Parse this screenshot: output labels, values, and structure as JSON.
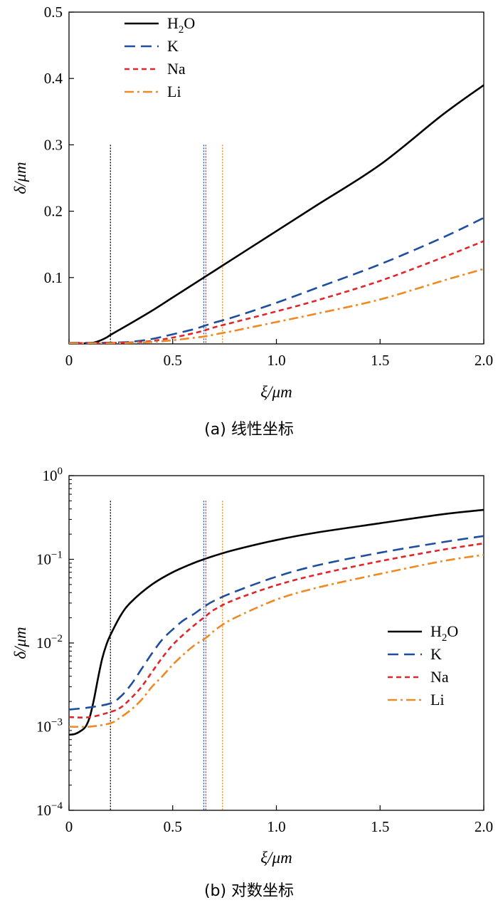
{
  "chart_data": [
    {
      "type": "line",
      "scale": "linear",
      "caption": "(a)  线性坐标",
      "xlabel": "ξ/μm",
      "ylabel": "δ/μm",
      "xlim": [
        0,
        2.0
      ],
      "ylim": [
        0,
        0.5
      ],
      "x_ticks": [
        0,
        0.5,
        1.0,
        1.5,
        2.0
      ],
      "x_tick_labels": [
        "0",
        "0.5",
        "1.0",
        "1.5",
        "2.0"
      ],
      "y_ticks": [
        0.1,
        0.2,
        0.3,
        0.4,
        0.5
      ],
      "y_tick_labels": [
        "0.1",
        "0.2",
        "0.3",
        "0.4",
        "0.5"
      ],
      "legend_position": "top-left",
      "grid": false,
      "vlines": [
        {
          "x": 0.2,
          "color": "#000000",
          "ymax": 0.3
        },
        {
          "x": 0.65,
          "color": "#1f4e9e",
          "ymax": 0.3
        },
        {
          "x": 0.66,
          "color": "#e0262a",
          "ymax": 0.3
        },
        {
          "x": 0.74,
          "color": "#ef8a22",
          "ymax": 0.3
        }
      ],
      "series": [
        {
          "name": "H2O",
          "color": "#000000",
          "dash": "solid",
          "x": [
            0,
            0.05,
            0.1,
            0.12,
            0.15,
            0.18,
            0.2,
            0.25,
            0.3,
            0.4,
            0.5,
            0.6,
            0.65,
            0.7,
            0.8,
            1.0,
            1.2,
            1.5,
            1.8,
            2.0
          ],
          "y": [
            0.0008,
            0.0008,
            0.0012,
            0.002,
            0.005,
            0.0095,
            0.0135,
            0.0225,
            0.0315,
            0.05,
            0.07,
            0.09,
            0.1,
            0.11,
            0.13,
            0.17,
            0.21,
            0.27,
            0.345,
            0.39
          ]
        },
        {
          "name": "K",
          "color": "#1f4e9e",
          "dash": "long",
          "x": [
            0,
            0.1,
            0.2,
            0.3,
            0.4,
            0.5,
            0.6,
            0.65,
            0.7,
            0.8,
            1.0,
            1.2,
            1.5,
            1.8,
            2.0
          ],
          "y": [
            0.0016,
            0.0017,
            0.0019,
            0.0032,
            0.0075,
            0.0145,
            0.022,
            0.027,
            0.032,
            0.041,
            0.062,
            0.085,
            0.12,
            0.16,
            0.19
          ]
        },
        {
          "name": "Na",
          "color": "#e0262a",
          "dash": "short",
          "x": [
            0,
            0.1,
            0.2,
            0.3,
            0.4,
            0.5,
            0.6,
            0.66,
            0.7,
            0.8,
            1.0,
            1.2,
            1.5,
            1.8,
            2.0
          ],
          "y": [
            0.0013,
            0.0013,
            0.0015,
            0.0022,
            0.0045,
            0.0095,
            0.016,
            0.021,
            0.025,
            0.033,
            0.049,
            0.066,
            0.095,
            0.13,
            0.155
          ]
        },
        {
          "name": "Li",
          "color": "#ef8a22",
          "dash": "dashdot",
          "x": [
            0,
            0.1,
            0.2,
            0.3,
            0.4,
            0.5,
            0.6,
            0.66,
            0.7,
            0.74,
            0.8,
            1.0,
            1.2,
            1.5,
            1.8,
            2.0
          ],
          "y": [
            0.001,
            0.001,
            0.0011,
            0.0016,
            0.003,
            0.0055,
            0.0092,
            0.0115,
            0.014,
            0.0165,
            0.02,
            0.033,
            0.046,
            0.067,
            0.095,
            0.113
          ]
        }
      ]
    },
    {
      "type": "line",
      "scale": "log",
      "caption": "(b)  对数坐标",
      "xlabel": "ξ/μm",
      "ylabel": "δ/μm",
      "xlim": [
        0,
        2.0
      ],
      "ylim": [
        0.0001,
        1
      ],
      "x_ticks": [
        0,
        0.5,
        1.0,
        1.5,
        2.0
      ],
      "x_tick_labels": [
        "0",
        "0.5",
        "1.0",
        "1.5",
        "2.0"
      ],
      "y_ticks": [
        0.0001,
        0.001,
        0.01,
        0.1,
        1
      ],
      "y_tick_labels": [
        {
          "base": "10",
          "exp": "−4"
        },
        {
          "base": "10",
          "exp": "−3"
        },
        {
          "base": "10",
          "exp": "−2"
        },
        {
          "base": "10",
          "exp": "−1"
        },
        {
          "base": "10",
          "exp": "0"
        }
      ],
      "legend_position": "right",
      "grid": false,
      "vlines": [
        {
          "x": 0.2,
          "color": "#000000",
          "ymax": 0.5
        },
        {
          "x": 0.65,
          "color": "#1f4e9e",
          "ymax": 0.5
        },
        {
          "x": 0.66,
          "color": "#e0262a",
          "ymax": 0.5
        },
        {
          "x": 0.74,
          "color": "#ef8a22",
          "ymax": 0.5
        }
      ],
      "series": [
        {
          "name": "H2O",
          "color": "#000000",
          "dash": "solid",
          "x": [
            0,
            0.03,
            0.06,
            0.08,
            0.1,
            0.12,
            0.14,
            0.16,
            0.18,
            0.2,
            0.25,
            0.3,
            0.4,
            0.5,
            0.6,
            0.65,
            0.7,
            0.8,
            1.0,
            1.2,
            1.5,
            1.8,
            2.0
          ],
          "y": [
            0.0008,
            0.00082,
            0.0009,
            0.001,
            0.0013,
            0.0021,
            0.0038,
            0.0065,
            0.0095,
            0.0125,
            0.0215,
            0.031,
            0.05,
            0.07,
            0.09,
            0.1,
            0.11,
            0.13,
            0.17,
            0.21,
            0.27,
            0.345,
            0.39
          ]
        },
        {
          "name": "K",
          "color": "#1f4e9e",
          "dash": "long",
          "x": [
            0,
            0.1,
            0.2,
            0.25,
            0.3,
            0.35,
            0.4,
            0.45,
            0.5,
            0.55,
            0.6,
            0.65,
            0.7,
            0.8,
            1.0,
            1.2,
            1.5,
            1.8,
            2.0
          ],
          "y": [
            0.0016,
            0.0017,
            0.0019,
            0.0023,
            0.0032,
            0.0049,
            0.0075,
            0.011,
            0.0145,
            0.0185,
            0.022,
            0.027,
            0.032,
            0.041,
            0.062,
            0.085,
            0.12,
            0.16,
            0.19
          ]
        },
        {
          "name": "Na",
          "color": "#e0262a",
          "dash": "short",
          "x": [
            0,
            0.1,
            0.2,
            0.25,
            0.3,
            0.35,
            0.4,
            0.45,
            0.5,
            0.55,
            0.6,
            0.66,
            0.7,
            0.8,
            1.0,
            1.2,
            1.5,
            1.8,
            2.0
          ],
          "y": [
            0.0013,
            0.0013,
            0.0015,
            0.0017,
            0.0022,
            0.003,
            0.0045,
            0.0067,
            0.0095,
            0.0125,
            0.016,
            0.021,
            0.025,
            0.033,
            0.049,
            0.066,
            0.095,
            0.13,
            0.155
          ]
        },
        {
          "name": "Li",
          "color": "#ef8a22",
          "dash": "dashdot",
          "x": [
            0,
            0.1,
            0.2,
            0.25,
            0.3,
            0.35,
            0.4,
            0.45,
            0.5,
            0.55,
            0.6,
            0.66,
            0.7,
            0.74,
            0.8,
            1.0,
            1.2,
            1.5,
            1.8,
            2.0
          ],
          "y": [
            0.001,
            0.001,
            0.0011,
            0.0013,
            0.0016,
            0.0021,
            0.003,
            0.004,
            0.0055,
            0.0072,
            0.0092,
            0.0115,
            0.014,
            0.0165,
            0.02,
            0.033,
            0.046,
            0.067,
            0.095,
            0.113
          ]
        }
      ]
    }
  ]
}
